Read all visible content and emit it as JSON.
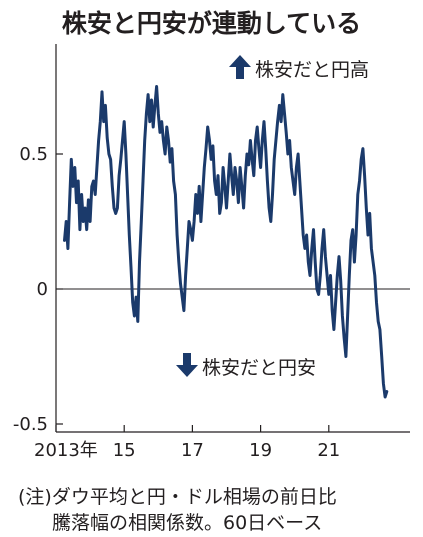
{
  "chart_data": {
    "type": "line",
    "title": "株安と円安が連動している",
    "x_tick_labels": [
      {
        "x": 2013,
        "label": "2013年"
      },
      {
        "x": 2015,
        "label": "15"
      },
      {
        "x": 2017,
        "label": "17"
      },
      {
        "x": 2019,
        "label": "19"
      },
      {
        "x": 2021,
        "label": "21"
      }
    ],
    "y_ticks": [
      {
        "y": 0.5,
        "label": "0.5"
      },
      {
        "y": 0,
        "label": "0"
      },
      {
        "y": -0.5,
        "label": "-0.5"
      }
    ],
    "xlim": [
      2013,
      2023.2
    ],
    "ylim": [
      -0.5,
      0.8
    ],
    "grid": "horizontal at 0 only",
    "series": [
      {
        "color": "#1b3a6b",
        "points": [
          [
            2013.25,
            0.18
          ],
          [
            2013.3,
            0.25
          ],
          [
            2013.35,
            0.15
          ],
          [
            2013.4,
            0.32
          ],
          [
            2013.45,
            0.48
          ],
          [
            2013.5,
            0.38
          ],
          [
            2013.55,
            0.45
          ],
          [
            2013.6,
            0.32
          ],
          [
            2013.65,
            0.4
          ],
          [
            2013.7,
            0.22
          ],
          [
            2013.75,
            0.35
          ],
          [
            2013.8,
            0.25
          ],
          [
            2013.85,
            0.3
          ],
          [
            2013.9,
            0.22
          ],
          [
            2013.95,
            0.33
          ],
          [
            2014.0,
            0.25
          ],
          [
            2014.05,
            0.38
          ],
          [
            2014.1,
            0.4
          ],
          [
            2014.15,
            0.35
          ],
          [
            2014.2,
            0.45
          ],
          [
            2014.25,
            0.55
          ],
          [
            2014.3,
            0.62
          ],
          [
            2014.35,
            0.73
          ],
          [
            2014.4,
            0.62
          ],
          [
            2014.45,
            0.68
          ],
          [
            2014.5,
            0.56
          ],
          [
            2014.55,
            0.5
          ],
          [
            2014.6,
            0.48
          ],
          [
            2014.65,
            0.38
          ],
          [
            2014.7,
            0.3
          ],
          [
            2014.75,
            0.28
          ],
          [
            2014.8,
            0.3
          ],
          [
            2014.85,
            0.42
          ],
          [
            2014.9,
            0.48
          ],
          [
            2014.95,
            0.55
          ],
          [
            2015.0,
            0.62
          ],
          [
            2015.05,
            0.5
          ],
          [
            2015.1,
            0.35
          ],
          [
            2015.15,
            0.2
          ],
          [
            2015.2,
            0.08
          ],
          [
            2015.25,
            -0.05
          ],
          [
            2015.3,
            -0.1
          ],
          [
            2015.35,
            -0.03
          ],
          [
            2015.4,
            -0.12
          ],
          [
            2015.45,
            0.1
          ],
          [
            2015.5,
            0.25
          ],
          [
            2015.55,
            0.4
          ],
          [
            2015.6,
            0.55
          ],
          [
            2015.65,
            0.65
          ],
          [
            2015.7,
            0.72
          ],
          [
            2015.75,
            0.62
          ],
          [
            2015.8,
            0.7
          ],
          [
            2015.85,
            0.6
          ],
          [
            2015.9,
            0.68
          ],
          [
            2015.95,
            0.75
          ],
          [
            2016.0,
            0.65
          ],
          [
            2016.05,
            0.58
          ],
          [
            2016.1,
            0.62
          ],
          [
            2016.15,
            0.55
          ],
          [
            2016.2,
            0.5
          ],
          [
            2016.25,
            0.6
          ],
          [
            2016.3,
            0.55
          ],
          [
            2016.35,
            0.47
          ],
          [
            2016.4,
            0.52
          ],
          [
            2016.45,
            0.4
          ],
          [
            2016.5,
            0.35
          ],
          [
            2016.55,
            0.2
          ],
          [
            2016.6,
            0.1
          ],
          [
            2016.65,
            0.02
          ],
          [
            2016.7,
            -0.03
          ],
          [
            2016.75,
            -0.08
          ],
          [
            2016.8,
            0.05
          ],
          [
            2016.85,
            0.15
          ],
          [
            2016.9,
            0.25
          ],
          [
            2016.95,
            0.22
          ],
          [
            2017.0,
            0.18
          ],
          [
            2017.05,
            0.25
          ],
          [
            2017.1,
            0.35
          ],
          [
            2017.15,
            0.28
          ],
          [
            2017.2,
            0.38
          ],
          [
            2017.25,
            0.25
          ],
          [
            2017.3,
            0.35
          ],
          [
            2017.35,
            0.45
          ],
          [
            2017.4,
            0.52
          ],
          [
            2017.45,
            0.6
          ],
          [
            2017.5,
            0.55
          ],
          [
            2017.55,
            0.48
          ],
          [
            2017.6,
            0.53
          ],
          [
            2017.65,
            0.4
          ],
          [
            2017.7,
            0.35
          ],
          [
            2017.75,
            0.42
          ],
          [
            2017.8,
            0.28
          ],
          [
            2017.85,
            0.32
          ],
          [
            2017.9,
            0.45
          ],
          [
            2017.95,
            0.38
          ],
          [
            2018.0,
            0.3
          ],
          [
            2018.05,
            0.4
          ],
          [
            2018.1,
            0.5
          ],
          [
            2018.15,
            0.42
          ],
          [
            2018.2,
            0.35
          ],
          [
            2018.25,
            0.45
          ],
          [
            2018.3,
            0.4
          ],
          [
            2018.35,
            0.32
          ],
          [
            2018.4,
            0.45
          ],
          [
            2018.45,
            0.38
          ],
          [
            2018.5,
            0.3
          ],
          [
            2018.55,
            0.42
          ],
          [
            2018.6,
            0.5
          ],
          [
            2018.65,
            0.46
          ],
          [
            2018.7,
            0.55
          ],
          [
            2018.75,
            0.48
          ],
          [
            2018.8,
            0.42
          ],
          [
            2018.85,
            0.55
          ],
          [
            2018.9,
            0.6
          ],
          [
            2018.95,
            0.52
          ],
          [
            2019.0,
            0.45
          ],
          [
            2019.05,
            0.55
          ],
          [
            2019.1,
            0.62
          ],
          [
            2019.15,
            0.52
          ],
          [
            2019.2,
            0.4
          ],
          [
            2019.25,
            0.3
          ],
          [
            2019.3,
            0.25
          ],
          [
            2019.35,
            0.35
          ],
          [
            2019.4,
            0.48
          ],
          [
            2019.45,
            0.55
          ],
          [
            2019.5,
            0.62
          ],
          [
            2019.55,
            0.68
          ],
          [
            2019.6,
            0.62
          ],
          [
            2019.65,
            0.72
          ],
          [
            2019.7,
            0.65
          ],
          [
            2019.75,
            0.58
          ],
          [
            2019.8,
            0.5
          ],
          [
            2019.85,
            0.55
          ],
          [
            2019.9,
            0.45
          ],
          [
            2019.95,
            0.4
          ],
          [
            2020.0,
            0.35
          ],
          [
            2020.05,
            0.45
          ],
          [
            2020.1,
            0.5
          ],
          [
            2020.15,
            0.4
          ],
          [
            2020.2,
            0.3
          ],
          [
            2020.25,
            0.2
          ],
          [
            2020.3,
            0.15
          ],
          [
            2020.35,
            0.2
          ],
          [
            2020.4,
            0.1
          ],
          [
            2020.45,
            0.05
          ],
          [
            2020.5,
            0.15
          ],
          [
            2020.55,
            0.22
          ],
          [
            2020.6,
            0.1
          ],
          [
            2020.65,
            0.0
          ],
          [
            2020.7,
            -0.02
          ],
          [
            2020.75,
            0.05
          ],
          [
            2020.8,
            0.15
          ],
          [
            2020.85,
            0.22
          ],
          [
            2020.9,
            0.12
          ],
          [
            2020.95,
            0.05
          ],
          [
            2021.0,
            -0.02
          ],
          [
            2021.05,
            0.05
          ],
          [
            2021.1,
            -0.08
          ],
          [
            2021.15,
            -0.15
          ],
          [
            2021.2,
            -0.05
          ],
          [
            2021.25,
            0.05
          ],
          [
            2021.3,
            0.12
          ],
          [
            2021.35,
            0.03
          ],
          [
            2021.4,
            -0.1
          ],
          [
            2021.45,
            -0.18
          ],
          [
            2021.5,
            -0.25
          ],
          [
            2021.55,
            -0.1
          ],
          [
            2021.6,
            0.05
          ],
          [
            2021.65,
            0.18
          ],
          [
            2021.7,
            0.22
          ],
          [
            2021.75,
            0.1
          ],
          [
            2021.8,
            0.2
          ],
          [
            2021.85,
            0.35
          ],
          [
            2021.9,
            0.4
          ],
          [
            2021.95,
            0.48
          ],
          [
            2022.0,
            0.52
          ],
          [
            2022.05,
            0.42
          ],
          [
            2022.1,
            0.3
          ],
          [
            2022.15,
            0.2
          ],
          [
            2022.2,
            0.28
          ],
          [
            2022.25,
            0.15
          ],
          [
            2022.3,
            0.1
          ],
          [
            2022.35,
            0.05
          ],
          [
            2022.4,
            -0.05
          ],
          [
            2022.45,
            -0.12
          ],
          [
            2022.5,
            -0.15
          ],
          [
            2022.55,
            -0.25
          ],
          [
            2022.6,
            -0.35
          ],
          [
            2022.65,
            -0.4
          ],
          [
            2022.7,
            -0.38
          ]
        ]
      }
    ],
    "annotations": [
      {
        "text": "株安だと円高",
        "arrow": "up"
      },
      {
        "text": "株安だと円安",
        "arrow": "down"
      }
    ]
  },
  "notes": {
    "line1": "(注)ダウ平均と円・ドル相場の前日比",
    "line2": "騰落幅の相関係数。60日ベース"
  }
}
